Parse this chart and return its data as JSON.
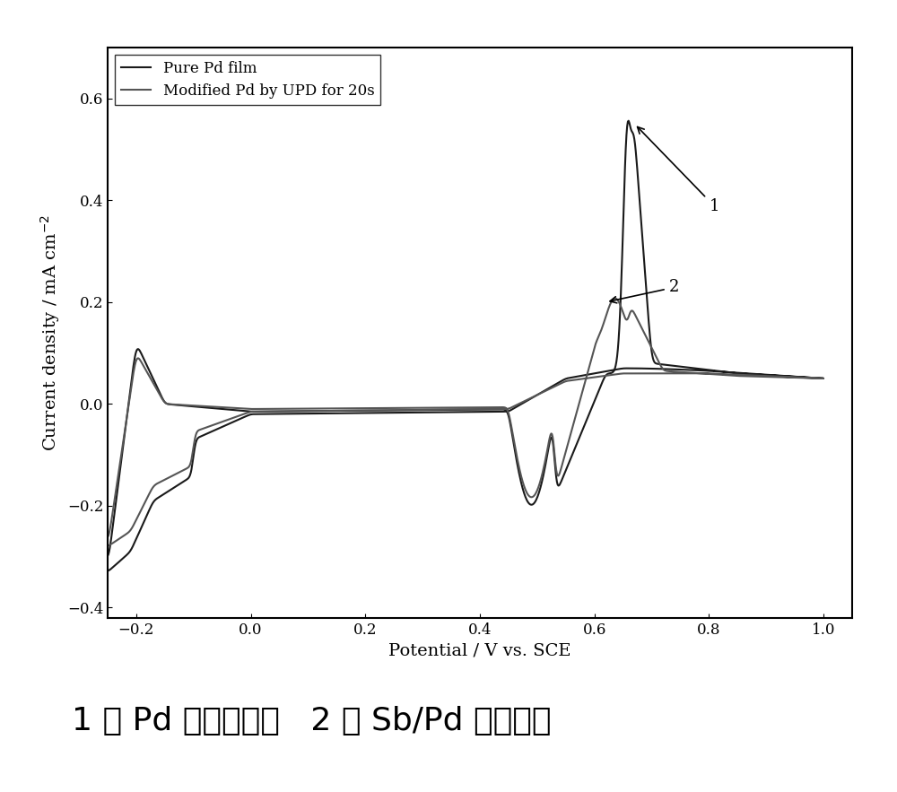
{
  "xlabel": "Potential / V vs. SCE",
  "ylabel": "Current density / mA cm⁻²",
  "xlim": [
    -0.25,
    1.05
  ],
  "ylim": [
    -0.42,
    0.7
  ],
  "xticks": [
    -0.2,
    0.0,
    0.2,
    0.4,
    0.6,
    0.8,
    1.0
  ],
  "yticks": [
    -0.4,
    -0.2,
    0.0,
    0.2,
    0.4,
    0.6
  ],
  "legend1": "Pure Pd film",
  "legend2": "Modified Pd by UPD for 20s",
  "color1": "#1a1a1a",
  "color2": "#555555",
  "annotation1": "1",
  "annotation2": "2",
  "caption": "1 为 Pd 膜的曲线，   2 为 Sb/Pd 膜的曲线",
  "figsize": [
    10.0,
    8.83
  ],
  "dpi": 100
}
